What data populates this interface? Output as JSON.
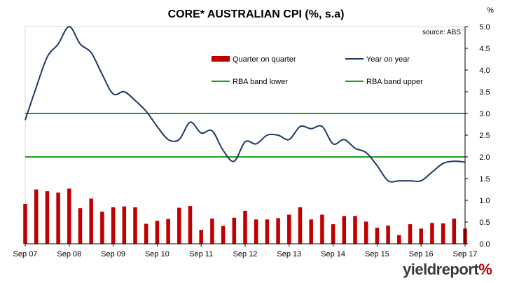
{
  "chart_data": {
    "type": "bar+line",
    "title": "CORE* AUSTRALIAN CPI (%, s.a)",
    "source_note": "source: ABS",
    "y_unit_label": "%",
    "ylim": [
      0,
      5.0
    ],
    "y_ticks": [
      "5.0",
      "4.5",
      "4.0",
      "3.5",
      "3.0",
      "2.5",
      "2.0",
      "1.5",
      "1.0",
      "0.5",
      "0.0"
    ],
    "x_tick_labels": [
      "Sep 07",
      "Sep 08",
      "Sep 09",
      "Sep 10",
      "Sep 11",
      "Sep 12",
      "Sep 13",
      "Sep 14",
      "Sep 15",
      "Sep 16",
      "Sep 17"
    ],
    "legend": {
      "qoq": "Quarter on quarter",
      "yoy": "Year on year",
      "band_lower": "RBA band lower",
      "band_upper": "RBA band upper"
    },
    "colors": {
      "bars": "#c00000",
      "yoy": "#1f3864",
      "band": "#1ea01e"
    },
    "series": [
      {
        "name": "Quarter on quarter",
        "values": [
          0.92,
          1.25,
          1.21,
          1.18,
          1.27,
          0.82,
          1.04,
          0.74,
          0.84,
          0.86,
          0.84,
          0.46,
          0.53,
          0.57,
          0.83,
          0.87,
          0.32,
          0.58,
          0.41,
          0.6,
          0.76,
          0.56,
          0.56,
          0.59,
          0.67,
          0.84,
          0.56,
          0.67,
          0.45,
          0.64,
          0.64,
          0.51,
          0.37,
          0.42,
          0.2,
          0.45,
          0.35,
          0.48,
          0.47,
          0.58,
          0.35
        ]
      },
      {
        "name": "Year on year",
        "values": [
          2.85,
          3.6,
          4.3,
          4.6,
          5.0,
          4.6,
          4.4,
          3.9,
          3.45,
          3.5,
          3.3,
          3.05,
          2.7,
          2.4,
          2.4,
          2.8,
          2.55,
          2.6,
          2.15,
          1.9,
          2.35,
          2.3,
          2.5,
          2.5,
          2.4,
          2.7,
          2.65,
          2.7,
          2.3,
          2.4,
          2.2,
          2.1,
          1.8,
          1.45,
          1.45,
          1.45,
          1.45,
          1.65,
          1.85,
          1.9,
          1.88
        ]
      },
      {
        "name": "RBA band lower",
        "value": 2.0
      },
      {
        "name": "RBA band upper",
        "value": 3.0
      }
    ]
  },
  "brand": {
    "text": "yieldreport",
    "symbol": "%"
  }
}
